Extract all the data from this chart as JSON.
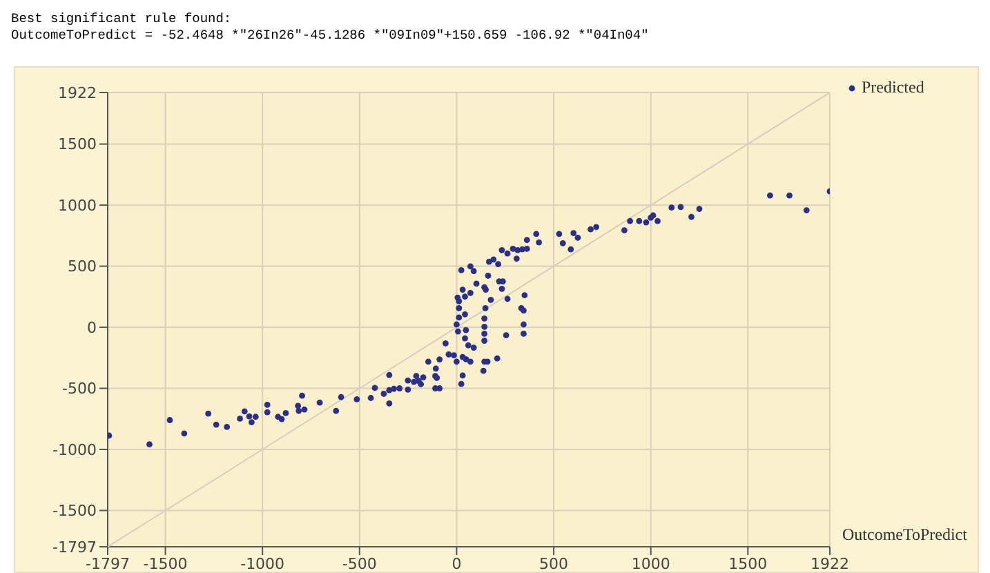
{
  "chart_data": {
    "type": "scatter",
    "title": "Best significant rule found:",
    "subtitle": "OutcomeToPredict = -52.4648 *\"26In26\"-45.1286 *\"09In09\"+150.659 -106.92 *\"04In04\"",
    "xlabel": "OutcomeToPredict",
    "xlim": [
      -1797,
      1922
    ],
    "ylim": [
      -1797,
      1922
    ],
    "xticks": [
      -1797,
      -1500,
      -1000,
      -500,
      0,
      500,
      1000,
      1500,
      1922
    ],
    "yticks": [
      -1797,
      -1500,
      -1000,
      -500,
      0,
      500,
      1000,
      1500,
      1922
    ],
    "grid": true,
    "legend": "top right",
    "marker": "circle",
    "series": [
      {
        "type": "line",
        "marker": "none",
        "color": "#d4cfc0",
        "x": [
          -1797,
          1922
        ],
        "values": [
          -1797,
          1922
        ]
      },
      {
        "name": "Predicted",
        "color": "#2b2f8c",
        "x": [
          -1790,
          -1582,
          -1477,
          -1403,
          -1279,
          -1238,
          -1183,
          -1116,
          -1092,
          -1068,
          -1056,
          -1035,
          -975,
          -975,
          -920,
          -901,
          -880,
          -817,
          -813,
          -796,
          -784,
          -705,
          -621,
          -595,
          -514,
          -442,
          -421,
          -375,
          -347,
          -347,
          -347,
          -323,
          -294,
          -251,
          -251,
          -220,
          -208,
          -196,
          -184,
          -172,
          -146,
          -110,
          -110,
          -88,
          -88,
          -57,
          -41,
          -14,
          -107,
          -102,
          0,
          7,
          0,
          12,
          12,
          12,
          5,
          24,
          31,
          43,
          43,
          48,
          43,
          60,
          71,
          71,
          88,
          88,
          102,
          31,
          48,
          71,
          31,
          24,
          138,
          143,
          159,
          143,
          143,
          143,
          143,
          148,
          150,
          143,
          162,
          176,
          167,
          190,
          214,
          209,
          219,
          238,
          233,
          233,
          255,
          262,
          262,
          290,
          314,
          309,
          338,
          333,
          350,
          345,
          345,
          345,
          362,
          362,
          410,
          424,
          528,
          547,
          588,
          602,
          624,
          690,
          719,
          864,
          893,
          940,
          976,
          1000,
          1012,
          1035,
          1107,
          1154,
          1209,
          1250,
          1614,
          1714,
          1802,
          1922
        ],
        "values": [
          -887,
          -959,
          -760,
          -869,
          -707,
          -797,
          -816,
          -748,
          -688,
          -729,
          -778,
          -733,
          -635,
          -696,
          -733,
          -752,
          -703,
          -643,
          -684,
          -560,
          -673,
          -617,
          -684,
          -572,
          -590,
          -579,
          -496,
          -545,
          -391,
          -515,
          -624,
          -504,
          -500,
          -511,
          -436,
          -447,
          -399,
          -440,
          -466,
          -410,
          -282,
          -399,
          -500,
          -500,
          -263,
          -132,
          -222,
          -229,
          -338,
          -414,
          -281,
          -34,
          23,
          80,
          156,
          213,
          243,
          467,
          308,
          251,
          106,
          -23,
          -91,
          -148,
          281,
          498,
          460,
          -167,
          357,
          -243,
          -262,
          -281,
          -395,
          -464,
          -357,
          -281,
          -281,
          -110,
          -53,
          4,
          72,
          156,
          308,
          327,
          422,
          224,
          536,
          555,
          517,
          -255,
          376,
          376,
          315,
          631,
          -65,
          232,
          604,
          642,
          631,
          562,
          638,
          156,
          262,
          137,
          23,
          -53,
          714,
          642,
          764,
          695,
          764,
          688,
          638,
          771,
          733,
          802,
          821,
          794,
          870,
          870,
          859,
          897,
          916,
          870,
          980,
          984,
          904,
          969,
          1079,
          1079,
          958,
          1113
        ]
      }
    ]
  }
}
